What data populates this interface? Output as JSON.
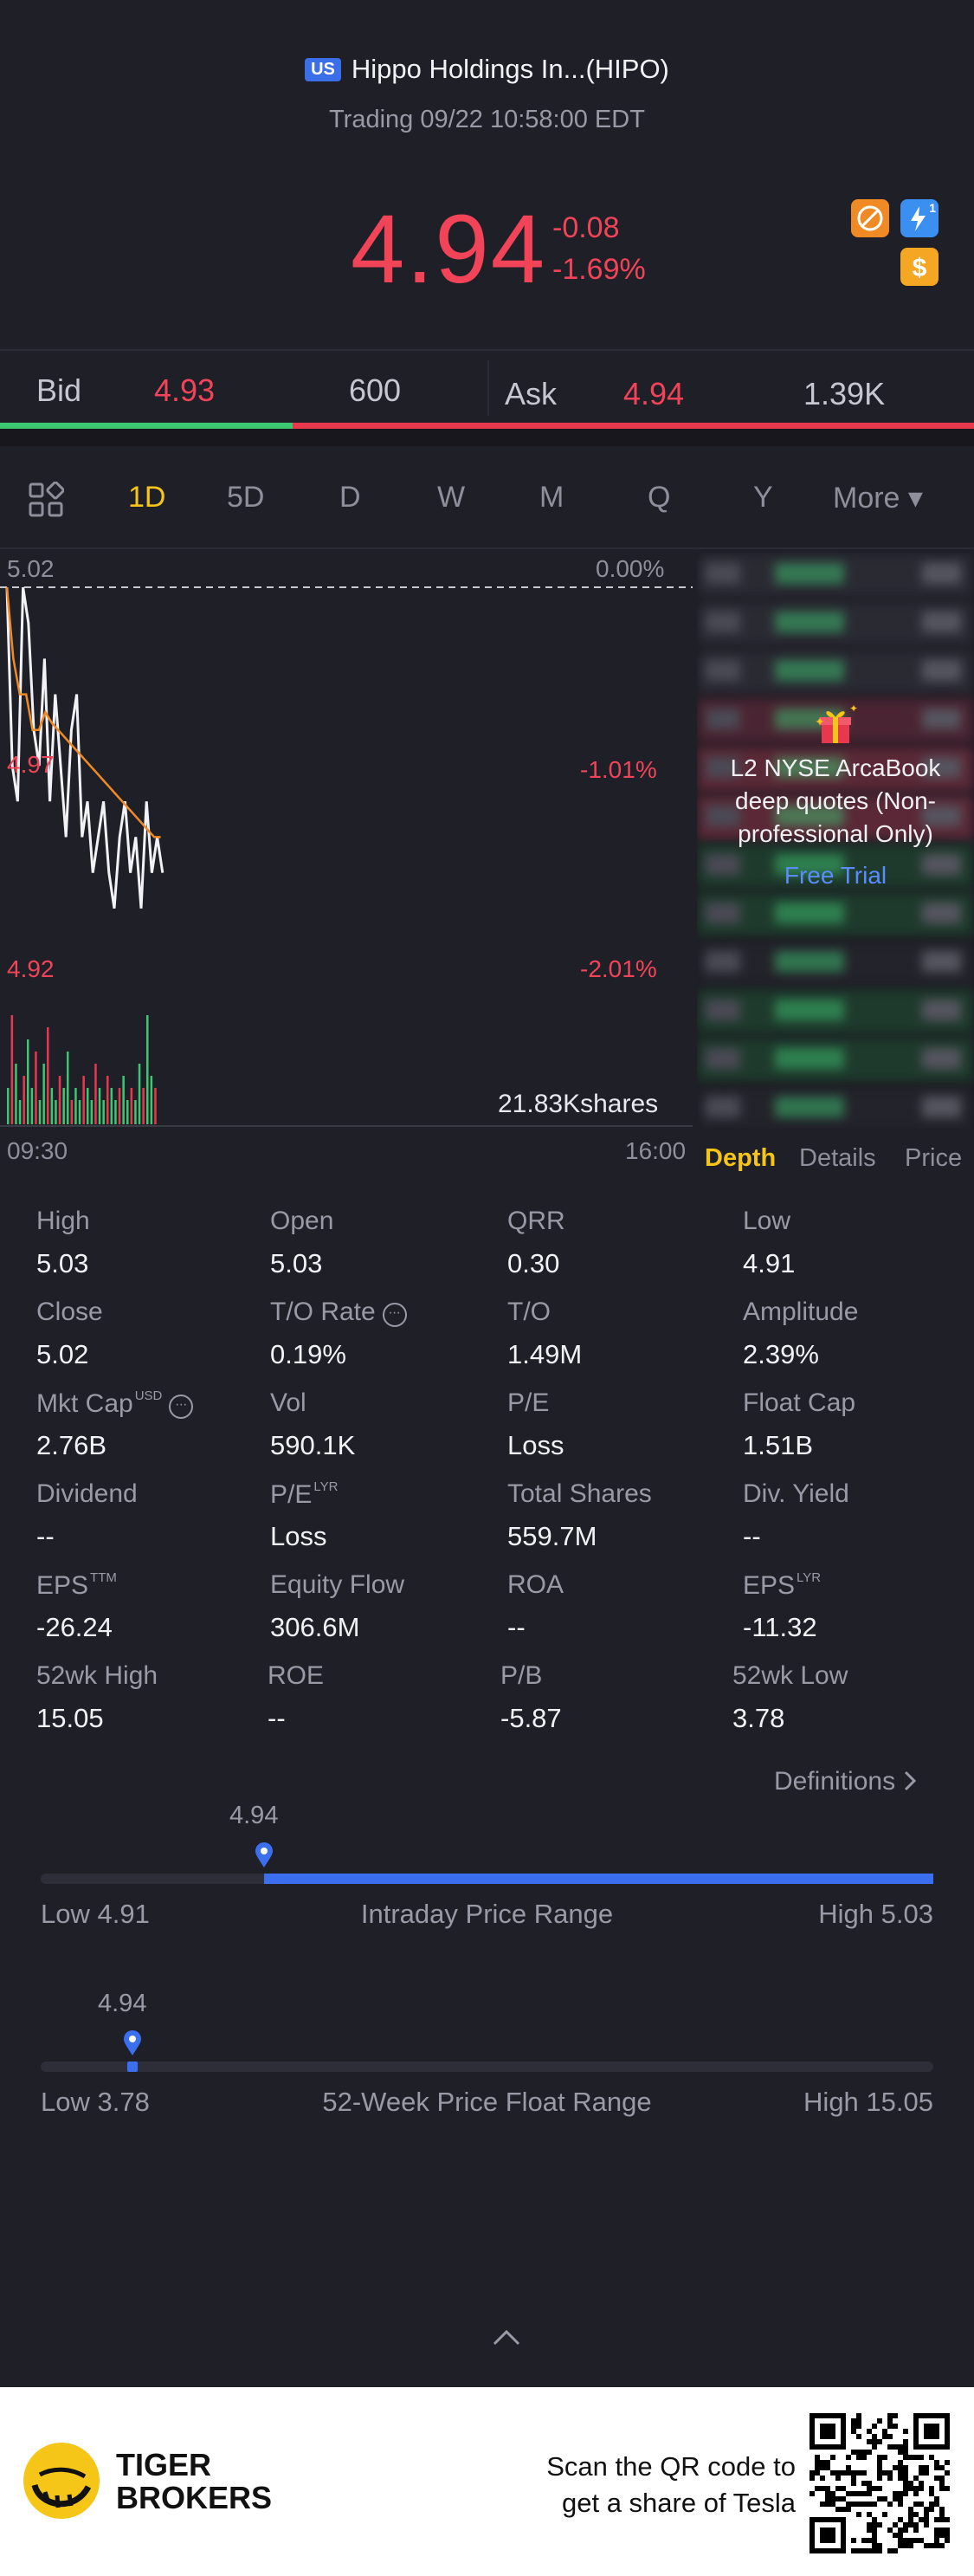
{
  "header": {
    "market_badge": "US",
    "title": "Hippo Holdings In...(HIPO)",
    "status": "Trading 09/22 10:58:00 EDT",
    "price": "4.94",
    "change": "-0.08",
    "change_pct": "-1.69%",
    "icons": [
      "no-short-icon",
      "flash-icon",
      "dollar-icon"
    ],
    "flash_count": "1"
  },
  "quote": {
    "bid_label": "Bid",
    "bid_price": "4.93",
    "bid_size": "600",
    "ask_label": "Ask",
    "ask_price": "4.94",
    "ask_size": "1.39K",
    "bid_share": 0.3
  },
  "tabs": [
    "1D",
    "5D",
    "D",
    "W",
    "M",
    "Q",
    "Y",
    "More ▾"
  ],
  "active_tab": "1D",
  "chart": {
    "price_top": "5.02",
    "price_mid": "4.97",
    "price_bottom": "4.92",
    "pct_top": "0.00%",
    "pct_mid": "-1.01%",
    "pct_bottom": "-2.01%",
    "volume": "21.83Kshares",
    "time_start": "09:30",
    "time_end": "16:00"
  },
  "chart_data": {
    "type": "line",
    "ylim": [
      4.92,
      5.02
    ],
    "series": [
      {
        "values": [
          5.02,
          4.97,
          4.96,
          5.02,
          5.01,
          4.98,
          4.97,
          5.0,
          4.96,
          4.99,
          4.97,
          4.95,
          4.98,
          4.99,
          4.95,
          4.96,
          4.94,
          4.95,
          4.96,
          4.94,
          4.93,
          4.95,
          4.96,
          4.94,
          4.95,
          4.93,
          4.96,
          4.94,
          4.95,
          4.94
        ]
      },
      {
        "values": [
          5.02,
          5.0,
          4.99,
          4.99,
          4.98,
          4.98,
          4.985,
          4.982,
          4.98,
          4.978,
          4.976,
          4.974,
          4.972,
          4.97,
          4.968,
          4.966,
          4.964,
          4.962,
          4.96,
          4.958,
          4.956,
          4.954,
          4.952,
          4.95,
          4.95
        ]
      }
    ],
    "volume_bars": [
      0.3,
      0.9,
      0.5,
      0.2,
      0.4,
      0.7,
      0.3,
      0.6,
      0.2,
      0.5,
      0.8,
      0.3,
      0.2,
      0.4,
      0.3,
      0.6,
      0.2,
      0.3,
      0.2,
      0.4,
      0.3,
      0.2,
      0.5,
      0.3,
      0.2,
      0.4,
      0.3,
      0.2,
      0.3,
      0.4,
      0.2,
      0.3,
      0.2,
      0.5,
      0.3,
      0.9,
      0.4,
      0.3
    ]
  },
  "depth_panel": {
    "promo_text": "L2 NYSE ArcaBook deep quotes (Non-professional Only)",
    "free_trial": "Free Trial",
    "tabs": [
      "Depth",
      "Details",
      "Price"
    ]
  },
  "stats": [
    {
      "label": "High",
      "value": "5.03"
    },
    {
      "label": "Open",
      "value": "5.03"
    },
    {
      "label": "QRR",
      "value": "0.30"
    },
    {
      "label": "Low",
      "value": "4.91"
    },
    {
      "label": "Close",
      "value": "5.02"
    },
    {
      "label": "T/O Rate",
      "value": "0.19%"
    },
    {
      "label": "T/O",
      "value": "1.49M"
    },
    {
      "label": "Amplitude",
      "value": "2.39%"
    },
    {
      "label": "Mkt Cap",
      "value": "2.76B",
      "sup": "USD"
    },
    {
      "label": "Vol",
      "value": "590.1K"
    },
    {
      "label": "P/E",
      "value": "Loss"
    },
    {
      "label": "Float Cap",
      "value": "1.51B"
    },
    {
      "label": "Dividend",
      "value": "--"
    },
    {
      "label": "P/E",
      "value": "Loss",
      "sup": "LYR"
    },
    {
      "label": "Total Shares",
      "value": "559.7M"
    },
    {
      "label": "Div. Yield",
      "value": "--"
    },
    {
      "label": "EPS",
      "value": "-26.24",
      "sup": "TTM"
    },
    {
      "label": "Equity Flow",
      "value": "306.6M"
    },
    {
      "label": "ROA",
      "value": "--"
    },
    {
      "label": "EPS",
      "value": "-11.32",
      "sup": "LYR"
    },
    {
      "label": "52wk High",
      "value": "15.05"
    },
    {
      "label": "ROE",
      "value": "--"
    },
    {
      "label": "P/B",
      "value": "-5.87"
    },
    {
      "label": "52wk Low",
      "value": "3.78"
    }
  ],
  "definitions": "Definitions",
  "intraday_range": {
    "current": "4.94",
    "low": "Low 4.91",
    "title": "Intraday Price Range",
    "high": "High 5.03",
    "position": 0.25
  },
  "week52_range": {
    "current": "4.94",
    "low": "Low 3.78",
    "title": "52-Week Price Float Range",
    "high": "High 15.05",
    "position": 0.103
  },
  "footer": {
    "brand_line1": "TIGER",
    "brand_line2": "BROKERS",
    "cta_line1": "Scan the QR code to",
    "cta_line2": "get a share of Tesla"
  }
}
